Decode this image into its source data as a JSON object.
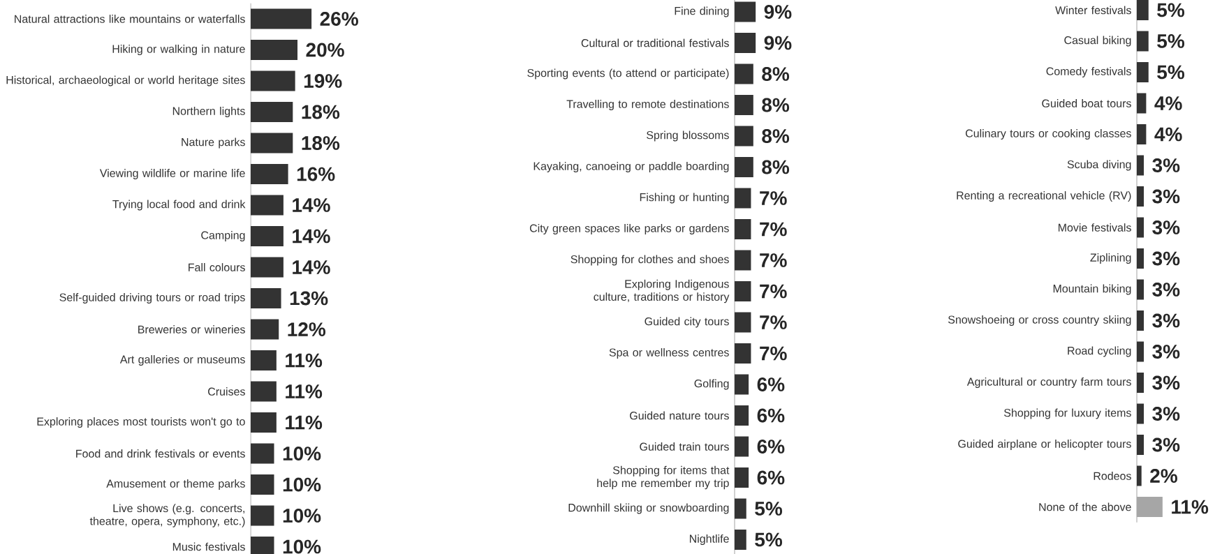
{
  "chart_data": [
    {
      "type": "bar",
      "orientation": "horizontal",
      "categories": [
        "Natural attractions like mountains or waterfalls",
        "Hiking or walking in nature",
        "Historical, archaeological or world heritage sites",
        "Northern lights",
        "Nature parks",
        "Viewing wildlife or marine life",
        "Trying local food and drink",
        "Camping",
        "Fall colours",
        "Self-guided driving tours or road trips",
        "Breweries or wineries",
        "Art galleries or museums",
        "Cruises",
        "Exploring places most tourists won't go to",
        "Food and drink festivals or events",
        "Amusement or theme parks",
        "Live shows (e.g. concerts, theatre, opera, symphony, etc.)",
        "Music festivals"
      ],
      "values": [
        26,
        20,
        19,
        18,
        18,
        16,
        14,
        14,
        14,
        13,
        12,
        11,
        11,
        11,
        10,
        10,
        10,
        10
      ],
      "value_labels": [
        "26%",
        "20%",
        "19%",
        "18%",
        "18%",
        "16%",
        "14%",
        "14%",
        "14%",
        "13%",
        "12%",
        "11%",
        "11%",
        "11%",
        "10%",
        "10%",
        "10%",
        "10%"
      ],
      "colors": [
        "#333333",
        "#333333",
        "#333333",
        "#333333",
        "#333333",
        "#333333",
        "#333333",
        "#333333",
        "#333333",
        "#333333",
        "#333333",
        "#333333",
        "#333333",
        "#333333",
        "#333333",
        "#333333",
        "#333333",
        "#333333"
      ]
    },
    {
      "type": "bar",
      "orientation": "horizontal",
      "categories": [
        "Fine dining",
        "Cultural or traditional festivals",
        "Sporting events (to attend or participate)",
        "Travelling to remote destinations",
        "Spring blossoms",
        "Kayaking, canoeing or paddle boarding",
        "Fishing or hunting",
        "City green spaces like parks or gardens",
        "Shopping for clothes and shoes",
        "Exploring Indigenous culture, traditions or history",
        "Guided city tours",
        "Spa or wellness centres",
        "Golfing",
        "Guided nature tours",
        "Guided train tours",
        "Shopping for items that help me remember my trip",
        "Downhill skiing or snowboarding",
        "Nightlife"
      ],
      "values": [
        9,
        9,
        8,
        8,
        8,
        8,
        7,
        7,
        7,
        7,
        7,
        7,
        6,
        6,
        6,
        6,
        5,
        5
      ],
      "value_labels": [
        "9%",
        "9%",
        "8%",
        "8%",
        "8%",
        "8%",
        "7%",
        "7%",
        "7%",
        "7%",
        "7%",
        "7%",
        "6%",
        "6%",
        "6%",
        "6%",
        "5%",
        "5%"
      ],
      "colors": [
        "#333333",
        "#333333",
        "#333333",
        "#333333",
        "#333333",
        "#333333",
        "#333333",
        "#333333",
        "#333333",
        "#333333",
        "#333333",
        "#333333",
        "#333333",
        "#333333",
        "#333333",
        "#333333",
        "#333333",
        "#333333"
      ]
    },
    {
      "type": "bar",
      "orientation": "horizontal",
      "categories": [
        "Winter festivals",
        "Casual biking",
        "Comedy festivals",
        "Guided boat tours",
        "Culinary tours or cooking classes",
        "Scuba diving",
        "Renting a recreational vehicle (RV)",
        "Movie festivals",
        "Ziplining",
        "Mountain biking",
        "Snowshoeing or cross country skiing",
        "Road cycling",
        "Agricultural or country farm tours",
        "Shopping for luxury items",
        "Guided airplane or helicopter tours",
        "Rodeos",
        "None of the above"
      ],
      "values": [
        5,
        5,
        5,
        4,
        4,
        3,
        3,
        3,
        3,
        3,
        3,
        3,
        3,
        3,
        3,
        2,
        11
      ],
      "value_labels": [
        "5%",
        "5%",
        "5%",
        "4%",
        "4%",
        "3%",
        "3%",
        "3%",
        "3%",
        "3%",
        "3%",
        "3%",
        "3%",
        "3%",
        "3%",
        "2%",
        "11%"
      ],
      "colors": [
        "#333333",
        "#333333",
        "#333333",
        "#333333",
        "#333333",
        "#333333",
        "#333333",
        "#333333",
        "#333333",
        "#333333",
        "#333333",
        "#333333",
        "#333333",
        "#333333",
        "#333333",
        "#333333",
        "#a6a6a6"
      ]
    }
  ]
}
